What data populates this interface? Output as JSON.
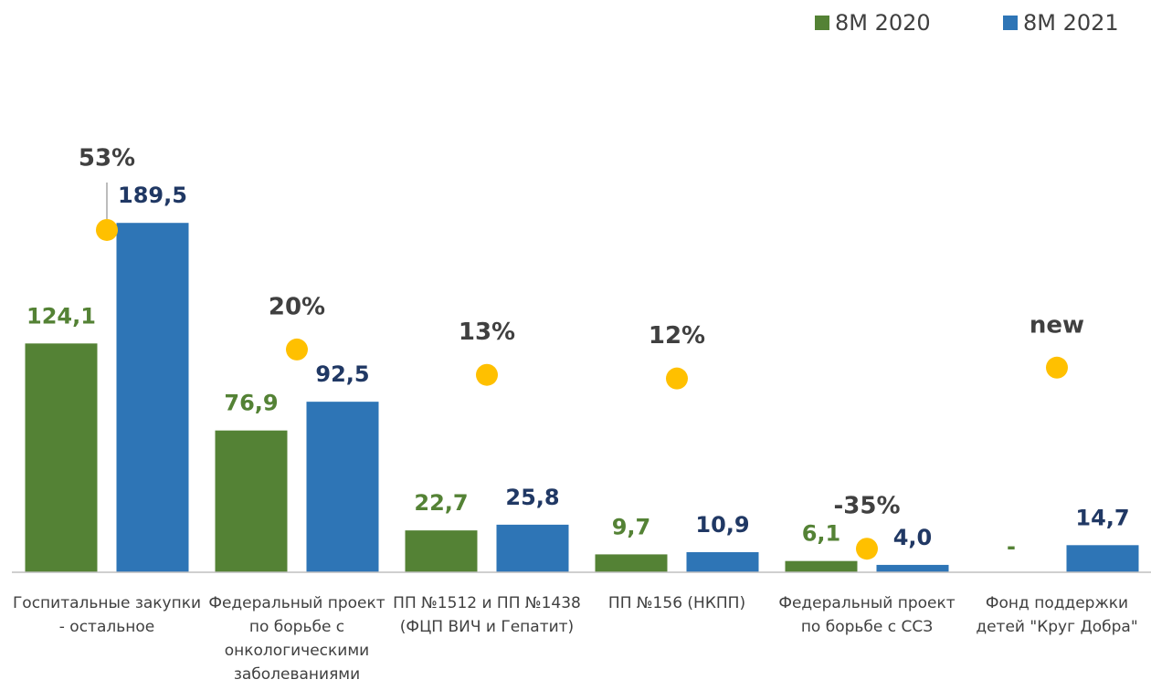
{
  "chart_data": {
    "type": "bar",
    "categories": [
      "Госпитальные закупки - остальное",
      "Федеральный проект по борьбе с онкологическими заболеваниями",
      "ПП №1512 и ПП №1438 (ФЦП ВИЧ и Гепатит)",
      "ПП №156 (НКПП)",
      "Федеральный проект по борьбе с ССЗ",
      "Фонд поддержки детей \"Круг Добра\""
    ],
    "series": [
      {
        "name": "8М 2020",
        "color": "#548235",
        "values": [
          124.1,
          76.9,
          22.7,
          9.7,
          6.1,
          null
        ],
        "value_labels": [
          "124,1",
          "76,9",
          "22,7",
          "9,7",
          "6,1",
          "-"
        ]
      },
      {
        "name": "8М 2021",
        "color": "#2e75b6",
        "values": [
          189.5,
          92.5,
          25.8,
          10.9,
          4.0,
          14.7
        ],
        "value_labels": [
          "189,5",
          "92,5",
          "25,8",
          "10,9",
          "4,0",
          "14,7"
        ]
      }
    ],
    "growth": {
      "axis": "y2",
      "color": "#ffc000",
      "values": [
        53,
        20,
        13,
        12,
        -35,
        15
      ],
      "value_labels": [
        "53%",
        "20%",
        "13%",
        "12%",
        "-35%",
        "new"
      ]
    },
    "ylim": [
      0,
      200
    ],
    "y2lim": [
      -41.5,
      60.3
    ],
    "legend": "top-right"
  }
}
